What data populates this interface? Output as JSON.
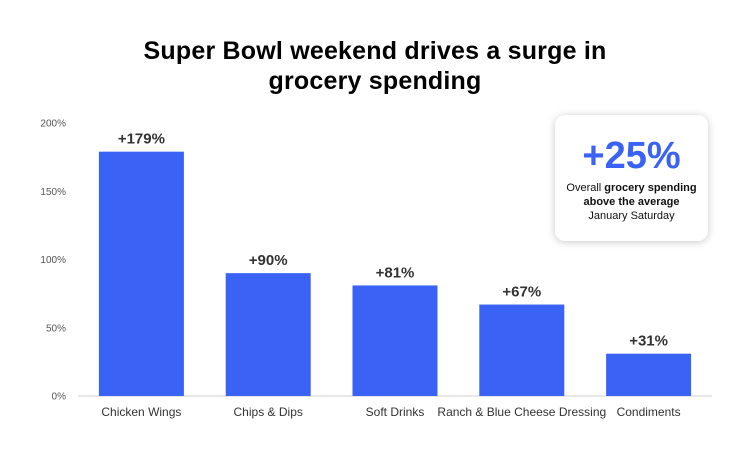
{
  "title_lines": [
    "Super Bowl weekend drives a surge in",
    "grocery spending"
  ],
  "chart_data": {
    "type": "bar",
    "title": "Super Bowl weekend drives a surge in grocery spending",
    "categories": [
      "Chicken Wings",
      "Chips & Dips",
      "Soft Drinks",
      "Ranch & Blue Cheese Dressing",
      "Condiments"
    ],
    "values": [
      179,
      90,
      81,
      67,
      31
    ],
    "data_labels": [
      "+179%",
      "+90%",
      "+81%",
      "+67%",
      "+31%"
    ],
    "y_ticks": [
      0,
      50,
      100,
      150,
      200
    ],
    "y_tick_labels": [
      "0%",
      "50%",
      "100%",
      "150%",
      "200%"
    ],
    "ylim": [
      0,
      200
    ],
    "xlabel": "",
    "ylabel": "",
    "grid": false,
    "bar_color": "#3a63f5"
  },
  "callout": {
    "value": "+25%",
    "line1_prefix": "Overall ",
    "line1_bold": "grocery spending",
    "line2_bold": "above the average",
    "line3": "January Saturday",
    "color": "#3a63f5"
  }
}
